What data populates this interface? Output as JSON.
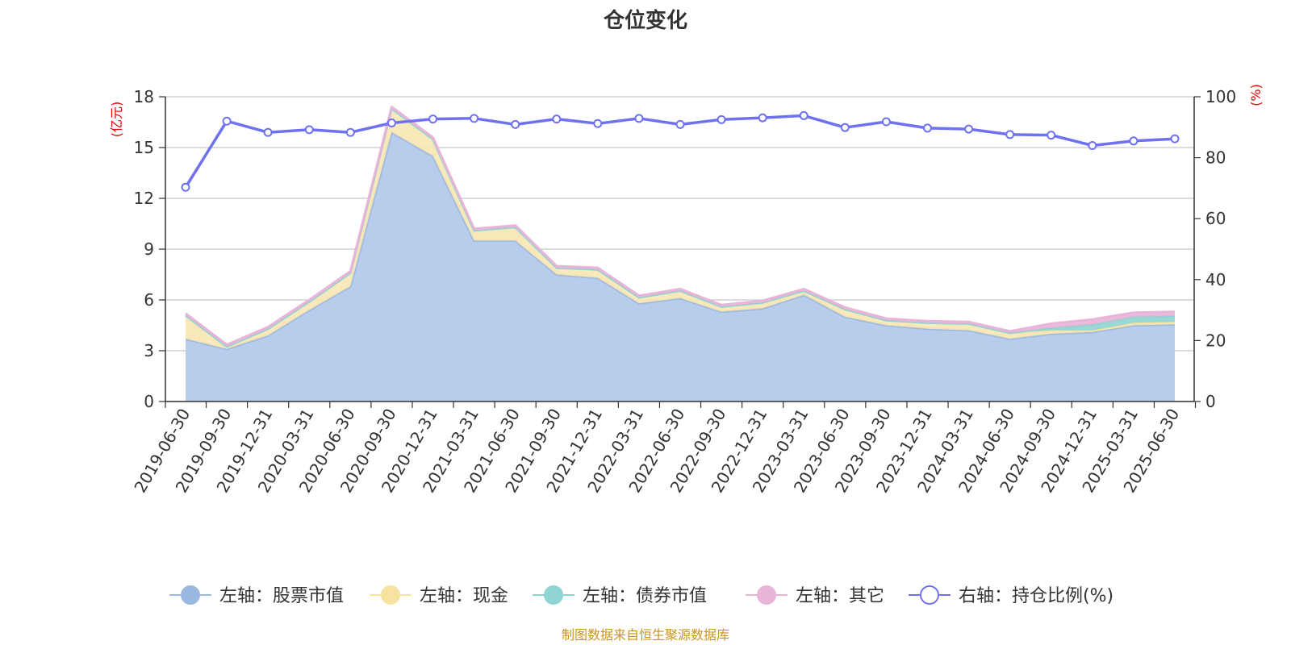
{
  "colors": {
    "stock": "#9bb8e0",
    "stock_fill": "#b8cdeb",
    "cash": "#f7e3a0",
    "cash_fill": "#f8e7b2",
    "bond": "#8fd3d3",
    "other": "#e8b4d8",
    "ratio": "#6f72f0",
    "unit_text": "#e60000",
    "source_text": "#c8951d"
  },
  "footer": {
    "source": "制图数据来自恒生聚源数据库"
  },
  "chart_data": {
    "type": "area",
    "title": "仓位变化",
    "left_axis": {
      "unit": "(亿元)",
      "range": [
        0,
        18
      ],
      "ticks": [
        "0",
        "3",
        "6",
        "9",
        "12",
        "15",
        "18"
      ]
    },
    "right_axis": {
      "unit": "(%)",
      "range": [
        0,
        100
      ],
      "ticks": [
        "0",
        "20",
        "40",
        "60",
        "80",
        "100"
      ]
    },
    "grid": true,
    "legend_position": "bottom",
    "categories": [
      "2019-06-30",
      "2019-09-30",
      "2019-12-31",
      "2020-03-31",
      "2020-06-30",
      "2020-09-30",
      "2020-12-31",
      "2021-03-31",
      "2021-06-30",
      "2021-09-30",
      "2021-12-31",
      "2022-03-31",
      "2022-06-30",
      "2022-09-30",
      "2022-12-31",
      "2023-03-31",
      "2023-06-30",
      "2023-09-30",
      "2023-12-31",
      "2024-03-31",
      "2024-06-30",
      "2024-09-30",
      "2024-12-31",
      "2025-03-31",
      "2025-06-30"
    ],
    "series": [
      {
        "name": "左轴：股票市值",
        "axis": "left",
        "kind": "stacked-area",
        "values": [
          3.7,
          3.1,
          3.9,
          5.4,
          6.8,
          15.9,
          14.5,
          9.5,
          9.5,
          7.5,
          7.3,
          5.8,
          6.1,
          5.3,
          5.5,
          6.3,
          5.0,
          4.5,
          4.3,
          4.2,
          3.7,
          4.0,
          4.1,
          4.5,
          4.55
        ]
      },
      {
        "name": "左轴：现金",
        "axis": "left",
        "kind": "stacked-area",
        "values": [
          1.4,
          0.15,
          0.4,
          0.5,
          0.8,
          1.4,
          1.0,
          0.6,
          0.8,
          0.4,
          0.5,
          0.35,
          0.45,
          0.3,
          0.35,
          0.25,
          0.45,
          0.3,
          0.35,
          0.4,
          0.35,
          0.2,
          0.1,
          0.15,
          0.15
        ]
      },
      {
        "name": "左轴：债券市值",
        "axis": "left",
        "kind": "stacked-area",
        "values": [
          0,
          0,
          0,
          0,
          0,
          0,
          0,
          0,
          0,
          0,
          0,
          0,
          0,
          0,
          0,
          0,
          0,
          0,
          0,
          0,
          0,
          0.15,
          0.35,
          0.35,
          0.35
        ]
      },
      {
        "name": "左轴：其它",
        "axis": "left",
        "kind": "stacked-area",
        "values": [
          0.1,
          0.1,
          0.1,
          0.1,
          0.1,
          0.1,
          0.1,
          0.1,
          0.1,
          0.1,
          0.1,
          0.1,
          0.1,
          0.1,
          0.1,
          0.1,
          0.1,
          0.1,
          0.1,
          0.1,
          0.1,
          0.25,
          0.3,
          0.25,
          0.25
        ]
      },
      {
        "name": "右轴：持仓比例(%)",
        "axis": "right",
        "kind": "line",
        "values": [
          70.3,
          92.0,
          88.3,
          89.2,
          88.3,
          91.4,
          92.7,
          92.9,
          90.9,
          92.7,
          91.2,
          92.9,
          90.9,
          92.5,
          93.1,
          93.8,
          89.9,
          91.8,
          89.7,
          89.4,
          87.6,
          87.4,
          84.0,
          85.5,
          86.2
        ]
      }
    ]
  }
}
